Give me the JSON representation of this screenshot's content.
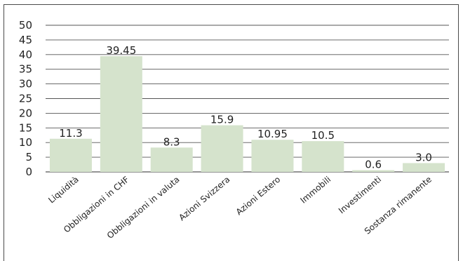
{
  "chart_data": {
    "type": "bar",
    "title": "",
    "xlabel": "",
    "ylabel": "",
    "ylim": [
      0,
      50
    ],
    "yticks": [
      0,
      5,
      10,
      15,
      20,
      25,
      30,
      35,
      40,
      45,
      50
    ],
    "grid": true,
    "legend": "none",
    "categories": [
      "Liquidità",
      "Obbligazioni in CHF",
      "Obbligazioni in valuta",
      "Azioni Svizzera",
      "Azioni Estero",
      "Immobili",
      "Investimenti",
      "Sostanza rimanente"
    ],
    "values": [
      11.3,
      39.45,
      8.3,
      15.9,
      10.95,
      10.5,
      0.6,
      3.0
    ],
    "value_labels": [
      "11.3",
      "39.45",
      "8.3",
      "15.9",
      "10.95",
      "10.5",
      "0.6",
      "3.0"
    ],
    "colors": {
      "bar": "#d5e3cc",
      "grid": "#555555",
      "text": "#222222"
    }
  }
}
